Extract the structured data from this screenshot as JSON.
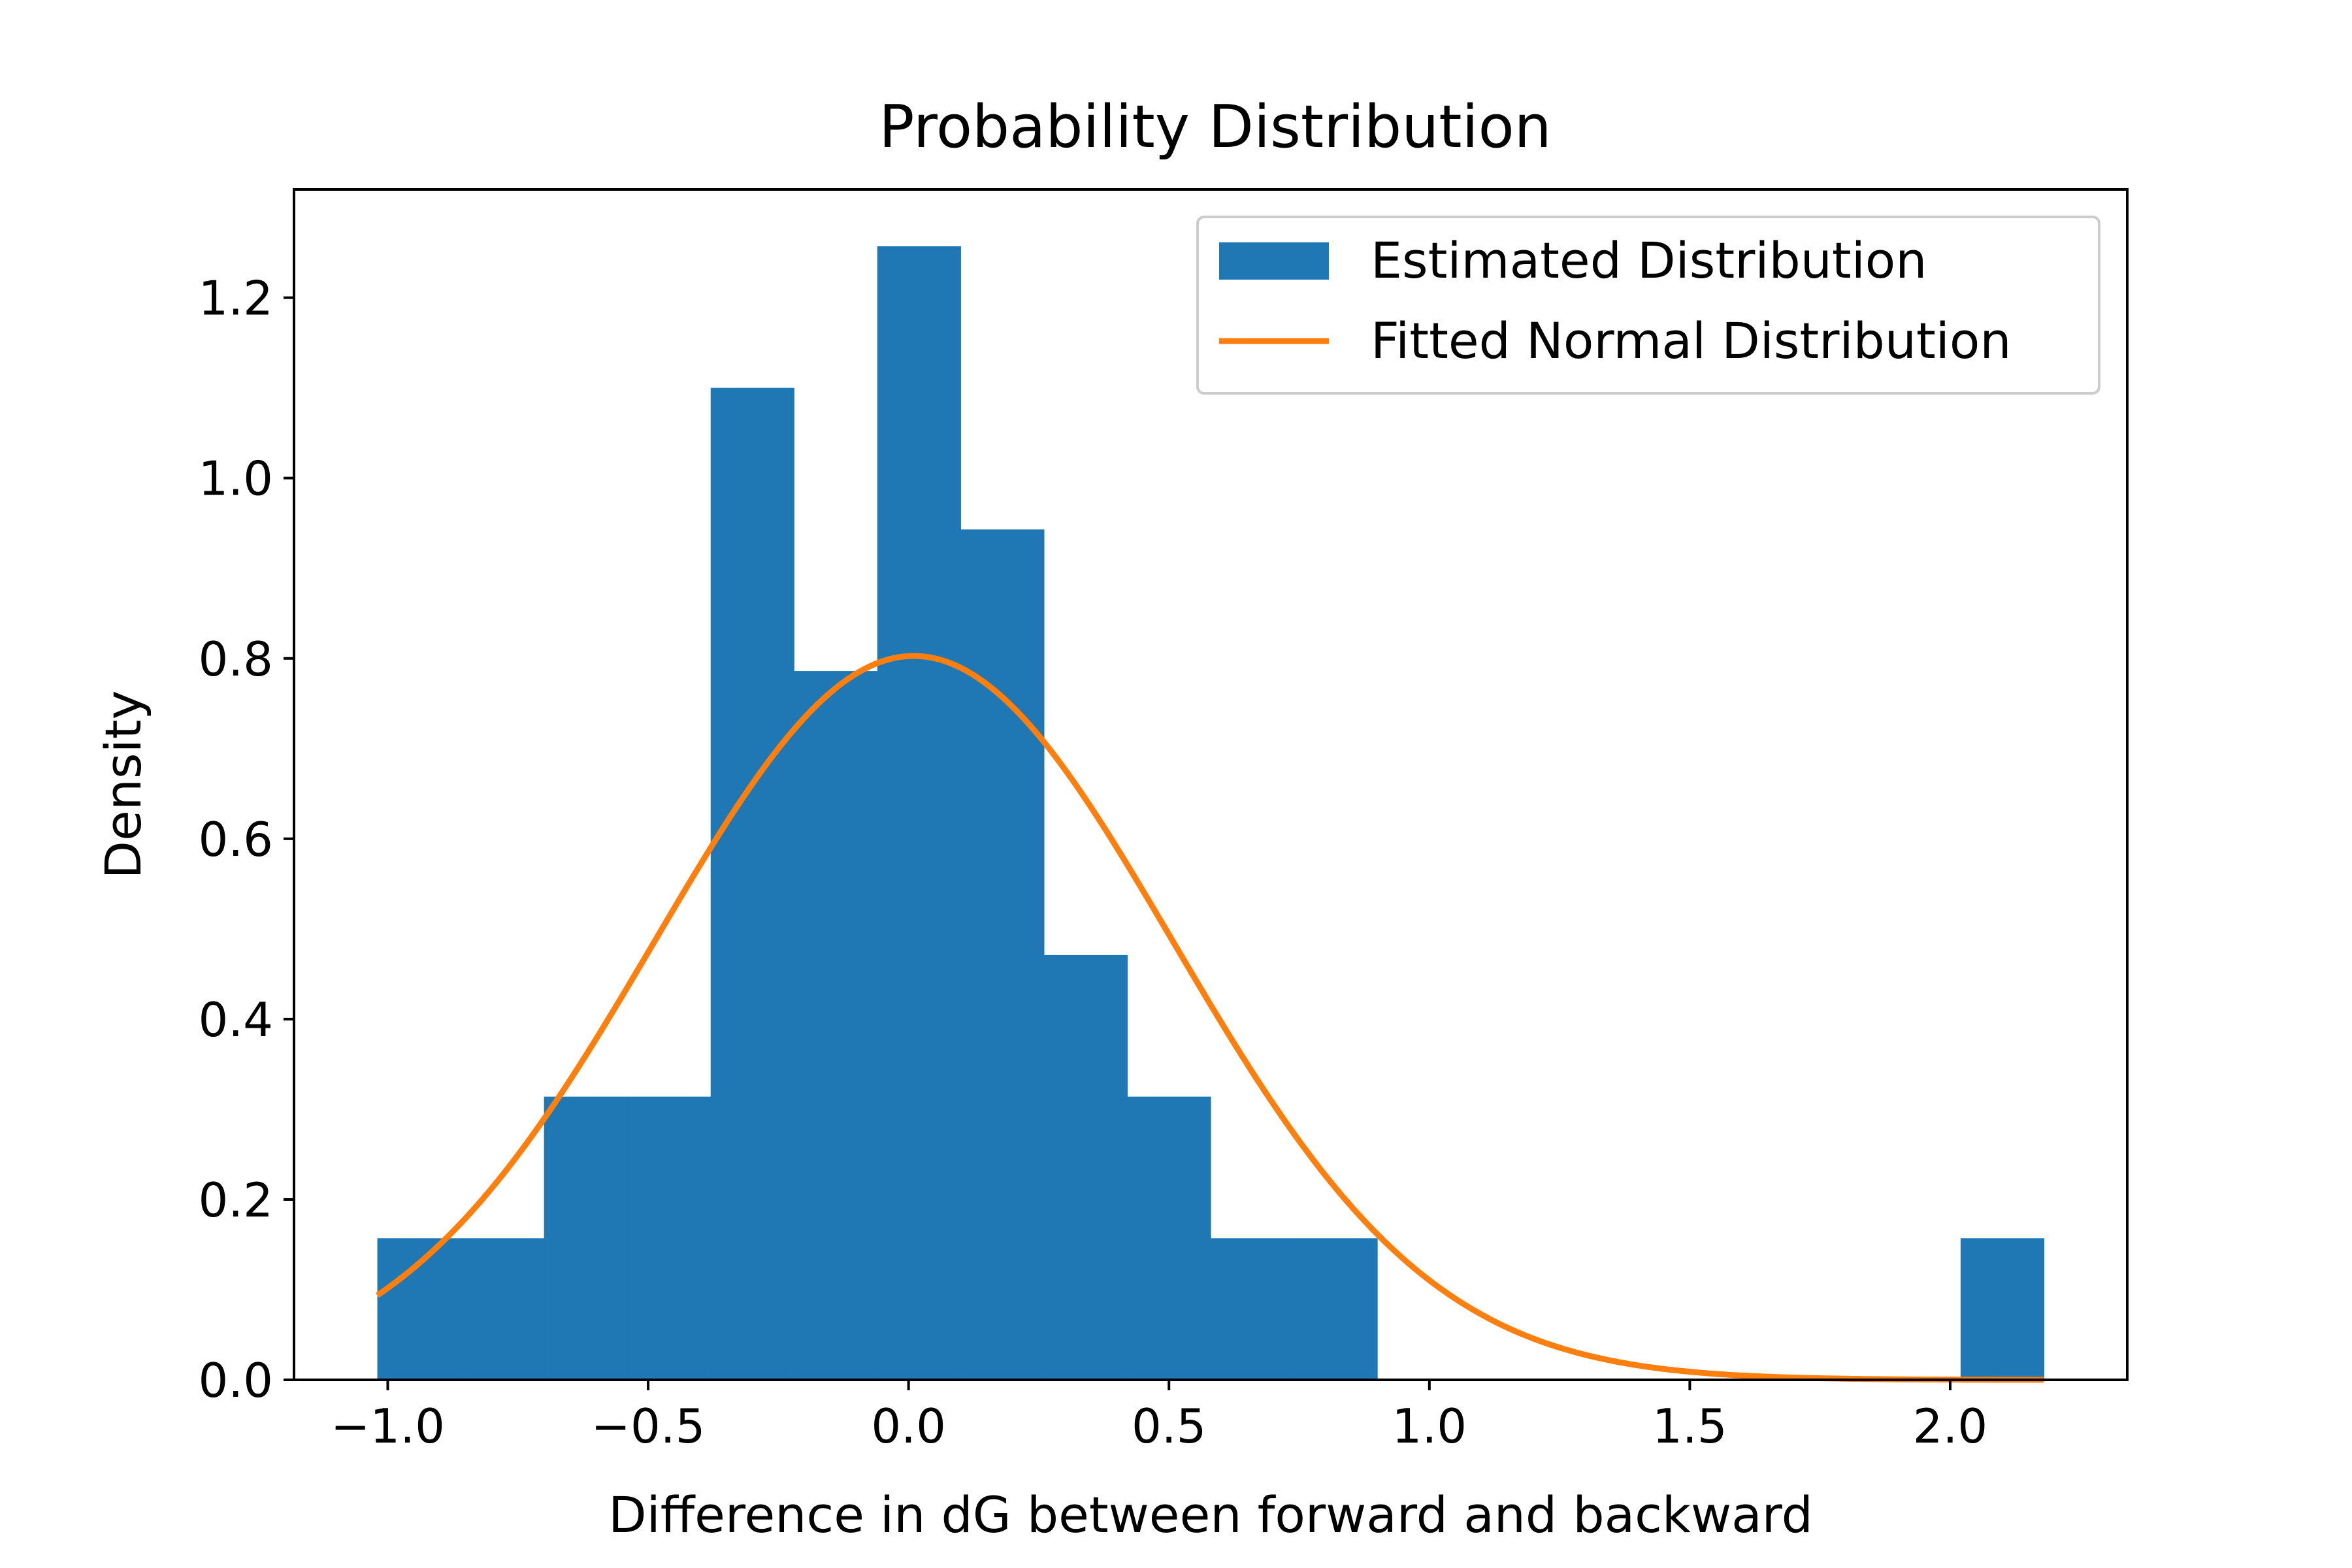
{
  "chart_data": {
    "type": "bar",
    "title": "Probability Distribution",
    "xlabel": "Difference in dG between forward and backward",
    "ylabel": "Density",
    "xlim": [
      -1.18,
      2.34
    ],
    "ylim": [
      0.0,
      1.32
    ],
    "xticks": [
      -1.0,
      -0.5,
      0.0,
      0.5,
      1.0,
      1.5,
      2.0
    ],
    "xtick_labels": [
      "−1.0",
      "−0.5",
      "0.0",
      "0.5",
      "1.0",
      "1.5",
      "2.0"
    ],
    "yticks": [
      0.0,
      0.2,
      0.4,
      0.6,
      0.8,
      1.0,
      1.2
    ],
    "ytick_labels": [
      "0.0",
      "0.2",
      "0.4",
      "0.6",
      "0.8",
      "1.0",
      "1.2"
    ],
    "grid": false,
    "legend_position": "top-right",
    "histogram": {
      "name": "Estimated Distribution",
      "color": "#1f77b4",
      "bin_edges": [
        -1.02,
        -0.86,
        -0.7,
        -0.54,
        -0.38,
        -0.22,
        -0.06,
        0.1,
        0.26,
        0.42,
        0.58,
        0.74,
        0.9,
        1.06,
        1.22,
        1.38,
        1.54,
        1.7,
        1.86,
        2.02,
        2.18
      ],
      "densities": [
        0.157,
        0.157,
        0.314,
        0.314,
        1.1,
        0.786,
        1.257,
        0.943,
        0.471,
        0.314,
        0.157,
        0.157,
        0,
        0,
        0,
        0,
        0,
        0,
        0,
        0.157
      ]
    },
    "curve": {
      "name": "Fitted Normal Distribution",
      "color": "#ff7f0e",
      "mean": 0.01,
      "std": 0.497,
      "x_range": [
        -1.02,
        2.18
      ]
    }
  }
}
